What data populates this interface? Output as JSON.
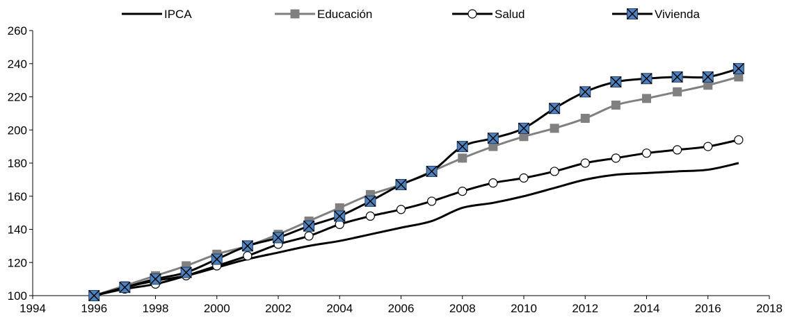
{
  "chart_data": {
    "type": "line",
    "title": "",
    "xlabel": "",
    "ylabel": "",
    "xlim": [
      1994,
      2018
    ],
    "ylim": [
      100,
      260
    ],
    "x_ticks": [
      1994,
      1996,
      1998,
      2000,
      2002,
      2004,
      2006,
      2008,
      2010,
      2012,
      2014,
      2016,
      2018
    ],
    "y_ticks": [
      100,
      120,
      140,
      160,
      180,
      200,
      220,
      240,
      260
    ],
    "grid": false,
    "legend_position": "top",
    "x": [
      1996,
      1997,
      1998,
      1999,
      2000,
      2001,
      2002,
      2003,
      2004,
      2005,
      2006,
      2007,
      2008,
      2009,
      2010,
      2011,
      2012,
      2013,
      2014,
      2015,
      2016,
      2017
    ],
    "series": [
      {
        "name": "IPCA",
        "color": "#000000",
        "marker": "none",
        "values": [
          100,
          105,
          109,
          112,
          117,
          122,
          126,
          130,
          133,
          137,
          141,
          145,
          153,
          156,
          160,
          165,
          170,
          173,
          174,
          175,
          176,
          180
        ]
      },
      {
        "name": "Educación",
        "color": "#808080",
        "marker": "square",
        "values": [
          100,
          106,
          112,
          118,
          125,
          130,
          137,
          145,
          153,
          161,
          167,
          175,
          183,
          190,
          196,
          201,
          207,
          215,
          219,
          223,
          227,
          232
        ]
      },
      {
        "name": "Salud",
        "color": "#000000",
        "marker": "circle",
        "values": [
          100,
          104,
          107,
          112,
          118,
          124,
          131,
          136,
          143,
          148,
          152,
          157,
          163,
          168,
          171,
          175,
          180,
          183,
          186,
          188,
          190,
          194
        ]
      },
      {
        "name": "Vivienda",
        "color": "#000000",
        "marker": "x-square",
        "marker_fill": "#4f81bd",
        "values": [
          100,
          105,
          110,
          114,
          122,
          130,
          135,
          142,
          148,
          157,
          167,
          175,
          190,
          195,
          201,
          213,
          223,
          229,
          231,
          232,
          232,
          237
        ]
      }
    ]
  }
}
